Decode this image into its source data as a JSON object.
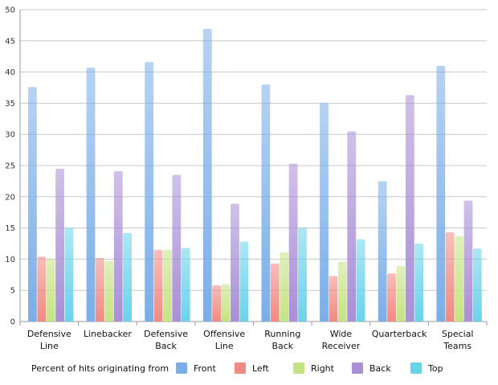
{
  "chart_data": {
    "type": "bar",
    "title": "",
    "xlabel": "",
    "ylabel": "",
    "ylim": [
      0,
      50
    ],
    "yticks": [
      0,
      5,
      10,
      15,
      20,
      25,
      30,
      35,
      40,
      45,
      50
    ],
    "grid": true,
    "categories": [
      [
        "Defensive",
        "Line"
      ],
      [
        "Linebacker"
      ],
      [
        "Defensive",
        "Back"
      ],
      [
        "Offensive",
        "Line"
      ],
      [
        "Running",
        "Back"
      ],
      [
        "Wide",
        "Receiver"
      ],
      [
        "Quarterback"
      ],
      [
        "Special",
        "Teams"
      ]
    ],
    "legend_title": "Percent of hits originating from",
    "legend_position": "bottom",
    "series": [
      {
        "name": "Front",
        "color": "#7aaee8",
        "values": [
          37.6,
          40.7,
          41.6,
          46.9,
          38.0,
          35.0,
          22.5,
          41.0
        ]
      },
      {
        "name": "Left",
        "color": "#f08a82",
        "values": [
          10.4,
          10.2,
          11.5,
          5.8,
          9.3,
          7.3,
          7.7,
          14.3
        ]
      },
      {
        "name": "Right",
        "color": "#c6e384",
        "values": [
          10.0,
          9.7,
          11.5,
          6.0,
          11.1,
          9.6,
          8.9,
          13.7
        ]
      },
      {
        "name": "Back",
        "color": "#a98fd6",
        "values": [
          24.5,
          24.1,
          23.5,
          18.9,
          25.3,
          30.5,
          36.3,
          19.4
        ]
      },
      {
        "name": "Top",
        "color": "#6ad3ea",
        "values": [
          15.0,
          14.2,
          11.8,
          12.8,
          15.0,
          13.2,
          12.5,
          11.7
        ]
      }
    ]
  }
}
